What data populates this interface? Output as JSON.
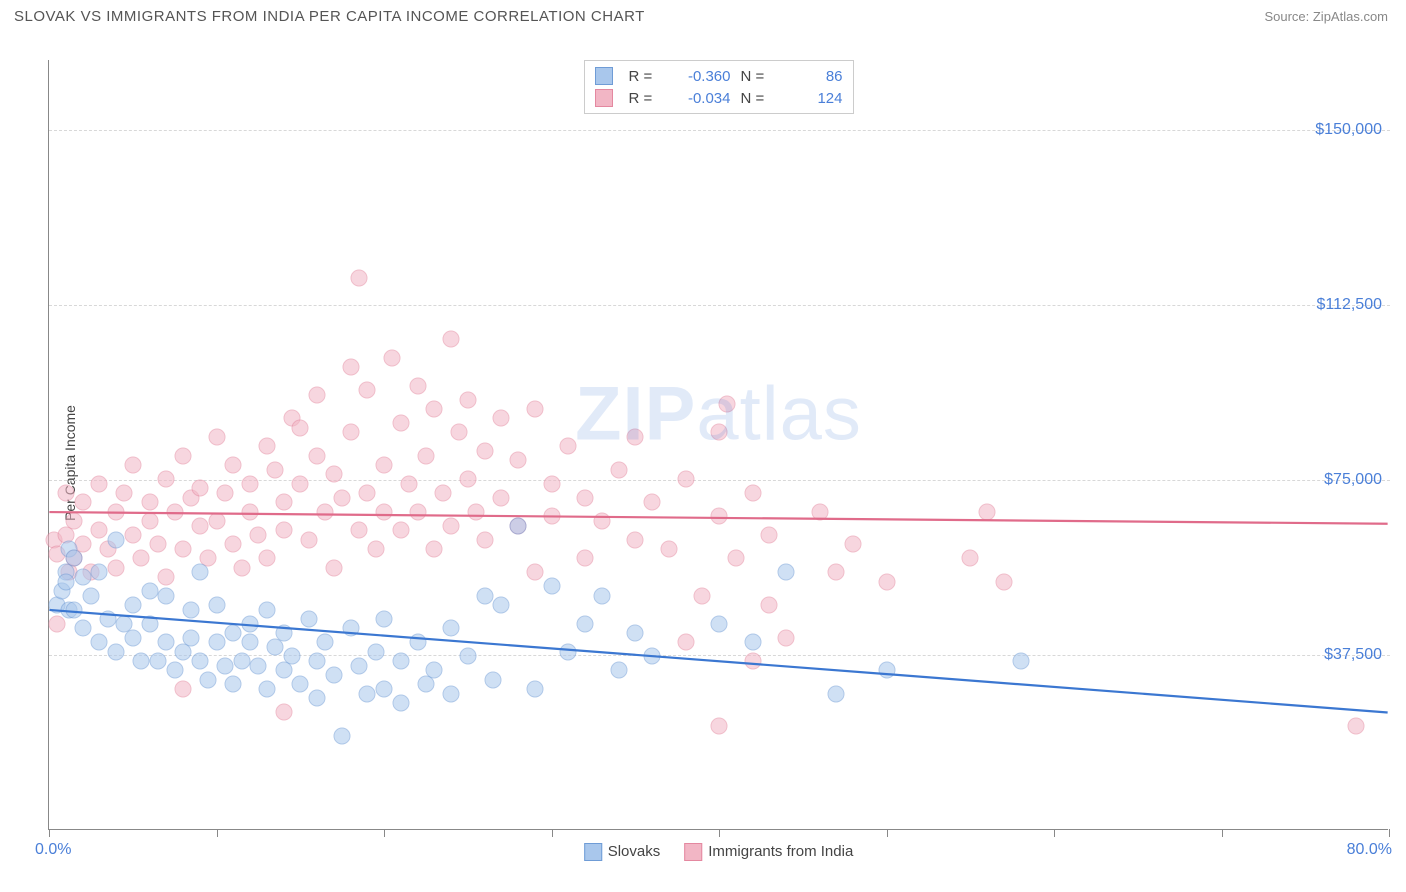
{
  "title": "SLOVAK VS IMMIGRANTS FROM INDIA PER CAPITA INCOME CORRELATION CHART",
  "source": "Source: ZipAtlas.com",
  "ylabel": "Per Capita Income",
  "watermark_a": "ZIP",
  "watermark_b": "atlas",
  "chart": {
    "type": "scatter",
    "xlim": [
      0,
      80
    ],
    "ylim": [
      0,
      165000
    ],
    "x_tick_step": 10,
    "x_min_label": "0.0%",
    "x_max_label": "80.0%",
    "y_gridlines": [
      37500,
      75000,
      112500,
      150000
    ],
    "y_tick_labels": [
      "$37,500",
      "$75,000",
      "$112,500",
      "$150,000"
    ],
    "grid_color": "#d8d8d8",
    "axis_color": "#888888",
    "value_color": "#4a7fd8",
    "background": "#ffffff",
    "series": [
      {
        "id": "slovaks",
        "label": "Slovaks",
        "fill": "#a9c7ec",
        "stroke": "#6f9cd6",
        "line_color": "#3b77d1",
        "R": "-0.360",
        "N": "86",
        "trend": {
          "x1": 0,
          "y1": 47000,
          "x2": 80,
          "y2": 25000
        },
        "points": [
          [
            0.5,
            48000
          ],
          [
            0.8,
            51000
          ],
          [
            1,
            55000
          ],
          [
            1,
            53000
          ],
          [
            1.2,
            47000
          ],
          [
            1.2,
            60000
          ],
          [
            1.5,
            47000
          ],
          [
            1.5,
            58000
          ],
          [
            2,
            54000
          ],
          [
            2,
            43000
          ],
          [
            2.5,
            50000
          ],
          [
            3,
            40000
          ],
          [
            3,
            55000
          ],
          [
            3.5,
            45000
          ],
          [
            4,
            62000
          ],
          [
            4,
            38000
          ],
          [
            4.5,
            44000
          ],
          [
            5,
            41000
          ],
          [
            5,
            48000
          ],
          [
            5.5,
            36000
          ],
          [
            6,
            51000
          ],
          [
            6,
            44000
          ],
          [
            6.5,
            36000
          ],
          [
            7,
            40000
          ],
          [
            7,
            50000
          ],
          [
            7.5,
            34000
          ],
          [
            8,
            38000
          ],
          [
            8.5,
            47000
          ],
          [
            8.5,
            41000
          ],
          [
            9,
            36000
          ],
          [
            9,
            55000
          ],
          [
            9.5,
            32000
          ],
          [
            10,
            40000
          ],
          [
            10,
            48000
          ],
          [
            10.5,
            35000
          ],
          [
            11,
            42000
          ],
          [
            11,
            31000
          ],
          [
            11.5,
            36000
          ],
          [
            12,
            40000
          ],
          [
            12,
            44000
          ],
          [
            12.5,
            35000
          ],
          [
            13,
            47000
          ],
          [
            13,
            30000
          ],
          [
            13.5,
            39000
          ],
          [
            14,
            34000
          ],
          [
            14,
            42000
          ],
          [
            14.5,
            37000
          ],
          [
            15,
            31000
          ],
          [
            15.5,
            45000
          ],
          [
            16,
            36000
          ],
          [
            16,
            28000
          ],
          [
            16.5,
            40000
          ],
          [
            17,
            33000
          ],
          [
            17.5,
            20000
          ],
          [
            18,
            43000
          ],
          [
            18.5,
            35000
          ],
          [
            19,
            29000
          ],
          [
            19.5,
            38000
          ],
          [
            20,
            30000
          ],
          [
            20,
            45000
          ],
          [
            21,
            36000
          ],
          [
            21,
            27000
          ],
          [
            22,
            40000
          ],
          [
            22.5,
            31000
          ],
          [
            23,
            34000
          ],
          [
            24,
            29000
          ],
          [
            24,
            43000
          ],
          [
            25,
            37000
          ],
          [
            26,
            50000
          ],
          [
            26.5,
            32000
          ],
          [
            27,
            48000
          ],
          [
            28,
            65000
          ],
          [
            29,
            30000
          ],
          [
            30,
            52000
          ],
          [
            31,
            38000
          ],
          [
            32,
            44000
          ],
          [
            33,
            50000
          ],
          [
            34,
            34000
          ],
          [
            35,
            42000
          ],
          [
            36,
            37000
          ],
          [
            40,
            44000
          ],
          [
            42,
            40000
          ],
          [
            44,
            55000
          ],
          [
            47,
            29000
          ],
          [
            50,
            34000
          ],
          [
            58,
            36000
          ]
        ]
      },
      {
        "id": "india",
        "label": "Immigrants from India",
        "fill": "#f2b6c5",
        "stroke": "#e488a0",
        "line_color": "#e06b8a",
        "R": "-0.034",
        "N": "124",
        "trend": {
          "x1": 0,
          "y1": 68000,
          "x2": 80,
          "y2": 65500
        },
        "points": [
          [
            0.3,
            62000
          ],
          [
            0.5,
            44000
          ],
          [
            0.5,
            59000
          ],
          [
            1,
            72000
          ],
          [
            1,
            63000
          ],
          [
            1.2,
            55000
          ],
          [
            1.5,
            66000
          ],
          [
            1.5,
            58000
          ],
          [
            2,
            70000
          ],
          [
            2,
            61000
          ],
          [
            2.5,
            55000
          ],
          [
            3,
            74000
          ],
          [
            3,
            64000
          ],
          [
            3.5,
            60000
          ],
          [
            4,
            68000
          ],
          [
            4,
            56000
          ],
          [
            4.5,
            72000
          ],
          [
            5,
            63000
          ],
          [
            5,
            78000
          ],
          [
            5.5,
            58000
          ],
          [
            6,
            70000
          ],
          [
            6,
            66000
          ],
          [
            6.5,
            61000
          ],
          [
            7,
            75000
          ],
          [
            7,
            54000
          ],
          [
            7.5,
            68000
          ],
          [
            8,
            80000
          ],
          [
            8,
            60000
          ],
          [
            8.5,
            71000
          ],
          [
            9,
            65000
          ],
          [
            9,
            73000
          ],
          [
            9.5,
            58000
          ],
          [
            10,
            84000
          ],
          [
            10,
            66000
          ],
          [
            10.5,
            72000
          ],
          [
            11,
            61000
          ],
          [
            11,
            78000
          ],
          [
            11.5,
            56000
          ],
          [
            12,
            68000
          ],
          [
            12,
            74000
          ],
          [
            12.5,
            63000
          ],
          [
            13,
            82000
          ],
          [
            13,
            58000
          ],
          [
            13.5,
            77000
          ],
          [
            14,
            70000
          ],
          [
            14,
            64000
          ],
          [
            14.5,
            88000
          ],
          [
            15,
            74000
          ],
          [
            15.5,
            62000
          ],
          [
            16,
            80000
          ],
          [
            16,
            93000
          ],
          [
            16.5,
            68000
          ],
          [
            17,
            56000
          ],
          [
            17,
            76000
          ],
          [
            17.5,
            71000
          ],
          [
            18,
            85000
          ],
          [
            18.5,
            64000
          ],
          [
            18.5,
            118000
          ],
          [
            19,
            94000
          ],
          [
            19,
            72000
          ],
          [
            19.5,
            60000
          ],
          [
            20,
            78000
          ],
          [
            20,
            68000
          ],
          [
            20.5,
            101000
          ],
          [
            21,
            87000
          ],
          [
            21,
            64000
          ],
          [
            21.5,
            74000
          ],
          [
            22,
            95000
          ],
          [
            22,
            68000
          ],
          [
            22.5,
            80000
          ],
          [
            23,
            60000
          ],
          [
            23,
            90000
          ],
          [
            23.5,
            72000
          ],
          [
            24,
            105000
          ],
          [
            24,
            65000
          ],
          [
            24.5,
            85000
          ],
          [
            25,
            75000
          ],
          [
            25,
            92000
          ],
          [
            25.5,
            68000
          ],
          [
            26,
            81000
          ],
          [
            26,
            62000
          ],
          [
            27,
            88000
          ],
          [
            27,
            71000
          ],
          [
            28,
            65000
          ],
          [
            28,
            79000
          ],
          [
            29,
            55000
          ],
          [
            29,
            90000
          ],
          [
            30,
            74000
          ],
          [
            30,
            67000
          ],
          [
            31,
            82000
          ],
          [
            32,
            58000
          ],
          [
            32,
            71000
          ],
          [
            33,
            66000
          ],
          [
            34,
            77000
          ],
          [
            35,
            62000
          ],
          [
            35,
            84000
          ],
          [
            36,
            70000
          ],
          [
            37,
            60000
          ],
          [
            38,
            75000
          ],
          [
            39,
            50000
          ],
          [
            40,
            67000
          ],
          [
            40.5,
            91000
          ],
          [
            41,
            58000
          ],
          [
            42,
            72000
          ],
          [
            43,
            48000
          ],
          [
            43,
            63000
          ],
          [
            44,
            41000
          ],
          [
            46,
            68000
          ],
          [
            47,
            55000
          ],
          [
            48,
            61000
          ],
          [
            50,
            53000
          ],
          [
            55,
            58000
          ],
          [
            56,
            68000
          ],
          [
            57,
            53000
          ],
          [
            38,
            40000
          ],
          [
            42,
            36000
          ],
          [
            14,
            25000
          ],
          [
            8,
            30000
          ],
          [
            78,
            22000
          ],
          [
            40,
            22000
          ],
          [
            40,
            85000
          ],
          [
            15,
            86000
          ],
          [
            18,
            99000
          ]
        ]
      }
    ]
  }
}
